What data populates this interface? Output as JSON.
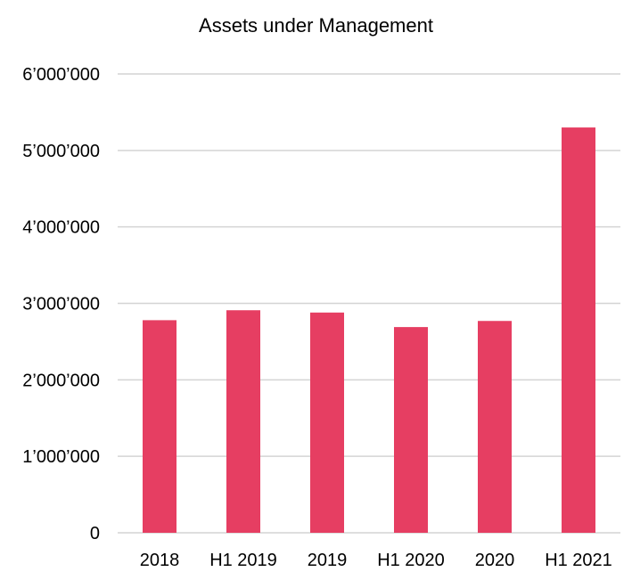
{
  "chart_data": {
    "type": "bar",
    "title": "Assets under Management",
    "categories": [
      "2018",
      "H1 2019",
      "2019",
      "H1 2020",
      "2020",
      "H1 2021"
    ],
    "values": [
      2780000,
      2910000,
      2880000,
      2690000,
      2770000,
      5300000
    ],
    "ylim": [
      0,
      6000000
    ],
    "yticks": [
      0,
      1000000,
      2000000,
      3000000,
      4000000,
      5000000,
      6000000
    ],
    "ytick_labels": [
      "0",
      "1’000’000",
      "2’000’000",
      "3’000’000",
      "4’000’000",
      "5’000’000",
      "6’000’000"
    ],
    "grid": true,
    "bar_color": "#e63e62",
    "grid_color": "#d4d4d4"
  }
}
